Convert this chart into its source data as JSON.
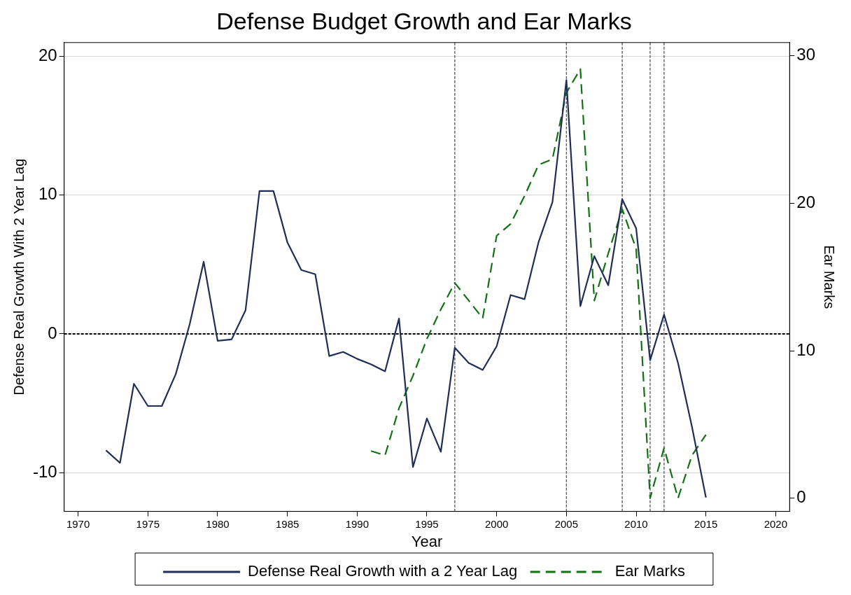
{
  "chart_data": {
    "type": "line",
    "title": "Defense Budget Growth and Ear Marks",
    "xlabel": "Year",
    "ylabel": "Defense Real Growth With 2 Year Lag",
    "y2label": "Ear Marks",
    "xlim": [
      1969,
      2021
    ],
    "xticks": [
      1970,
      1975,
      1980,
      1985,
      1990,
      1995,
      2000,
      2005,
      2010,
      2015,
      2020
    ],
    "ylim": [
      -12.8,
      21
    ],
    "yticks": [
      -10,
      0,
      10,
      20
    ],
    "y2lim": [
      -0.9,
      30.9
    ],
    "y2ticks": [
      0,
      10,
      20,
      30
    ],
    "grid": "y",
    "legend": "bottom",
    "marker": "none",
    "series": [
      {
        "name": "Defense Real Growth with a 2 Year Lag",
        "color": "#1f2d57",
        "line_style": "solid",
        "x": [
          1972,
          1973,
          1974,
          1975,
          1976,
          1977,
          1978,
          1979,
          1980,
          1981,
          1982,
          1983,
          1984,
          1985,
          1986,
          1987,
          1988,
          1989,
          1990,
          1991,
          1992,
          1993,
          1994,
          1995,
          1996,
          1997,
          1998,
          1999,
          2000,
          2001,
          2002,
          2003,
          2004,
          2005,
          2006,
          2007,
          2008,
          2009,
          2010,
          2011,
          2012,
          2013,
          2014,
          2015
        ],
        "values": [
          -8.4,
          -9.3,
          -3.6,
          -5.2,
          -5.2,
          -2.9,
          0.7,
          5.2,
          -0.5,
          -0.4,
          1.7,
          10.3,
          10.3,
          6.6,
          4.6,
          4.3,
          -1.6,
          -1.3,
          -1.8,
          -2.2,
          -2.7,
          1.1,
          -9.6,
          -6.1,
          -8.5,
          -1.0,
          -2.1,
          -2.6,
          -0.9,
          2.8,
          2.5,
          6.6,
          9.5,
          18.3,
          2.0,
          5.6,
          3.5,
          9.7,
          7.6,
          -1.9,
          1.4,
          -2.1,
          -6.7,
          -11.8
        ]
      },
      {
        "name": "Ear Marks",
        "color": "#127112",
        "line_style": "dashed",
        "axis": "y2",
        "x": [
          1991,
          1992,
          1993,
          1994,
          1995,
          1996,
          1997,
          1998,
          1999,
          2000,
          2001,
          2002,
          2003,
          2004,
          2005,
          2006,
          2007,
          2008,
          2009,
          2010,
          2011,
          2012,
          2013,
          2014,
          2015
        ],
        "values": [
          3.2,
          2.9,
          6.1,
          8.3,
          10.8,
          12.8,
          14.6,
          13.4,
          12.2,
          17.8,
          18.6,
          20.5,
          22.6,
          23.0,
          27.5,
          29.1,
          13.4,
          16.6,
          19.6,
          16.9,
          0.0,
          3.4,
          0.0,
          2.9,
          4.3
        ]
      }
    ],
    "ref_lines": [
      {
        "axis": "y",
        "value": 0,
        "color": "#000000",
        "line_style": "dotted"
      },
      {
        "axis": "x",
        "value": 1997,
        "color": "#606060",
        "line_style": "dotted"
      },
      {
        "axis": "x",
        "value": 2005,
        "color": "#606060",
        "line_style": "dotted"
      },
      {
        "axis": "x",
        "value": 2009,
        "color": "#606060",
        "line_style": "dotted"
      },
      {
        "axis": "x",
        "value": 2011,
        "color": "#606060",
        "line_style": "dotted"
      },
      {
        "axis": "x",
        "value": 2012,
        "color": "#606060",
        "line_style": "dotted"
      }
    ]
  }
}
